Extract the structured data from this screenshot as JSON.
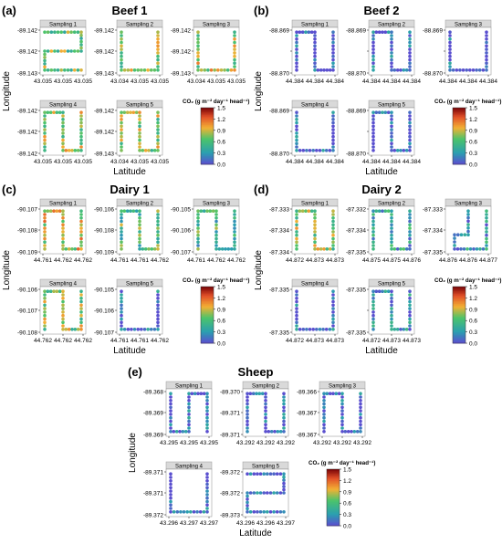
{
  "colorbar_label": "CO₂ (g m⁻² day⁻¹ head⁻¹)",
  "colorbar_ticks": [
    "0.0",
    "0.3",
    "0.6",
    "0.9",
    "1.2",
    "1.5"
  ],
  "axis_labels": {
    "x": "Latitude",
    "y": "Longitude"
  },
  "colors": {
    "low": "#5a4fcf",
    "mid_low": "#2a9fb0",
    "mid": "#4cc46a",
    "mid_high": "#f2b134",
    "high": "#c41f1f",
    "strip": "#d9d9d9"
  },
  "chart_data": [
    {
      "type": "scatter",
      "letter": "(a)",
      "title": "Beef 1",
      "sub": [
        {
          "label": "Sampling 1",
          "yt": [
            "-89.142",
            "-89.142",
            "-89.143"
          ],
          "xt": [
            "43.035",
            "43.035",
            "43.035"
          ],
          "shape": "S",
          "level": 0.45
        },
        {
          "label": "Sampling 2",
          "yt": [
            "-89.142",
            "-89.142",
            "-89.143"
          ],
          "xt": [
            "43.034",
            "43.035",
            "43.035"
          ],
          "shape": "U",
          "level": 0.5
        },
        {
          "label": "Sampling 3",
          "yt": [
            "-89.142",
            "-89.142",
            "-89.143"
          ],
          "xt": [
            "43.034",
            "43.035",
            "43.035"
          ],
          "shape": "U",
          "level": 0.55
        },
        {
          "label": "Sampling 4",
          "yt": [
            "-89.142",
            "-89.142",
            "-89.142"
          ],
          "xt": [
            "43.035",
            "43.035",
            "43.035"
          ],
          "shape": "N",
          "level": 0.55
        },
        {
          "label": "Sampling 5",
          "yt": [
            "-89.142",
            "-89.142",
            "-89.143"
          ],
          "xt": [
            "43.034",
            "43.035",
            "43.035"
          ],
          "shape": "N",
          "level": 0.5
        }
      ]
    },
    {
      "type": "scatter",
      "letter": "(b)",
      "title": "Beef 2",
      "sub": [
        {
          "label": "Sampling 1",
          "yt": [
            "-88.869",
            "",
            "-88.870"
          ],
          "xt": [
            "44.384",
            "44.384",
            "44.384"
          ],
          "shape": "N",
          "level": 0.05
        },
        {
          "label": "Sampling 2",
          "yt": [
            "-88.869",
            "",
            "-88.870"
          ],
          "xt": [
            "44.384",
            "44.384",
            "44.384"
          ],
          "shape": "N",
          "level": 0.05
        },
        {
          "label": "Sampling 3",
          "yt": [
            "-88.869",
            "",
            "-88.870"
          ],
          "xt": [
            "44.384",
            "44.384",
            "44.384"
          ],
          "shape": "U",
          "level": 0.05
        },
        {
          "label": "Sampling 4",
          "yt": [
            "-88.869",
            "",
            "-88.870"
          ],
          "xt": [
            "44.384",
            "44.384",
            "44.384"
          ],
          "shape": "U",
          "level": 0.05
        },
        {
          "label": "Sampling 5",
          "yt": [
            "-88.869",
            "",
            "-88.870"
          ],
          "xt": [
            "44.384",
            "44.384",
            "44.384"
          ],
          "shape": "N",
          "level": 0.08
        }
      ]
    },
    {
      "type": "scatter",
      "letter": "(c)",
      "title": "Dairy 1",
      "sub": [
        {
          "label": "Sampling 1",
          "yt": [
            "-90.107",
            "-90.108",
            "-90.109"
          ],
          "xt": [
            "44.761",
            "44.762",
            "44.762"
          ],
          "shape": "N",
          "level": 0.6
        },
        {
          "label": "Sampling 2",
          "yt": [
            "-90.106",
            "-90.108",
            "-90.109"
          ],
          "xt": [
            "44.761",
            "44.761",
            "44.762"
          ],
          "shape": "N",
          "level": 0.4
        },
        {
          "label": "Sampling 3",
          "yt": [
            "-90.105",
            "-90.106",
            "-90.107"
          ],
          "xt": [
            "44.761",
            "44.762",
            "44.762"
          ],
          "shape": "N",
          "level": 0.35
        },
        {
          "label": "Sampling 4",
          "yt": [
            "-90.106",
            "-90.107",
            "-90.108"
          ],
          "xt": [
            "44.762",
            "44.762",
            "44.762"
          ],
          "shape": "N",
          "level": 0.5
        },
        {
          "label": "Sampling 5",
          "yt": [
            "-90.105",
            "-90.106",
            "-90.107"
          ],
          "xt": [
            "44.761",
            "44.761",
            "44.762"
          ],
          "shape": "U",
          "level": 0.1
        }
      ]
    },
    {
      "type": "scatter",
      "letter": "(d)",
      "title": "Dairy 2",
      "sub": [
        {
          "label": "Sampling 1",
          "yt": [
            "-87.333",
            "-87.334",
            "-87.334"
          ],
          "xt": [
            "44.872",
            "44.873",
            "44.873"
          ],
          "shape": "N",
          "level": 0.5
        },
        {
          "label": "Sampling 2",
          "yt": [
            "-87.332",
            "-87.334",
            "-87.335"
          ],
          "xt": [
            "44.875",
            "44.875",
            "44.876"
          ],
          "shape": "N",
          "level": 0.25
        },
        {
          "label": "Sampling 3",
          "yt": [
            "-87.333",
            "-87.334",
            "-87.335"
          ],
          "xt": [
            "44.876",
            "44.876",
            "44.877"
          ],
          "shape": "J",
          "level": 0.2
        },
        {
          "label": "Sampling 4",
          "yt": [
            "-87.335",
            "",
            "-87.335"
          ],
          "xt": [
            "44.872",
            "44.873",
            "44.873"
          ],
          "shape": "U",
          "level": 0.08
        },
        {
          "label": "Sampling 5",
          "yt": [
            "-87.335",
            "",
            "-87.335"
          ],
          "xt": [
            "44.872",
            "44.873",
            "44.873"
          ],
          "shape": "N",
          "level": 0.15
        }
      ]
    },
    {
      "type": "scatter",
      "letter": "(e)",
      "title": "Sheep",
      "sub": [
        {
          "label": "Sampling 1",
          "yt": [
            "-89.368",
            "-89.369",
            "-89.369"
          ],
          "xt": [
            "43.295",
            "43.295",
            "43.295"
          ],
          "shape": "L",
          "level": 0.05
        },
        {
          "label": "Sampling 2",
          "yt": [
            "-89.370",
            "-89.371",
            "-89.371"
          ],
          "xt": [
            "43.292",
            "43.292",
            "43.292"
          ],
          "shape": "N",
          "level": 0.05
        },
        {
          "label": "Sampling 3",
          "yt": [
            "-89.366",
            "-89.367",
            "-89.367"
          ],
          "xt": [
            "43.292",
            "43.292",
            "43.292"
          ],
          "shape": "N",
          "level": 0.05
        },
        {
          "label": "Sampling 4",
          "yt": [
            "-89.371",
            "-89.371",
            "-89.372"
          ],
          "xt": [
            "43.296",
            "43.297",
            "43.297"
          ],
          "shape": "U",
          "level": 0.05
        },
        {
          "label": "Sampling 5",
          "yt": [
            "-89.372",
            "-89.372",
            "-89.373"
          ],
          "xt": [
            "43.296",
            "43.296",
            "43.297"
          ],
          "shape": "S",
          "level": 0.05
        }
      ]
    }
  ]
}
